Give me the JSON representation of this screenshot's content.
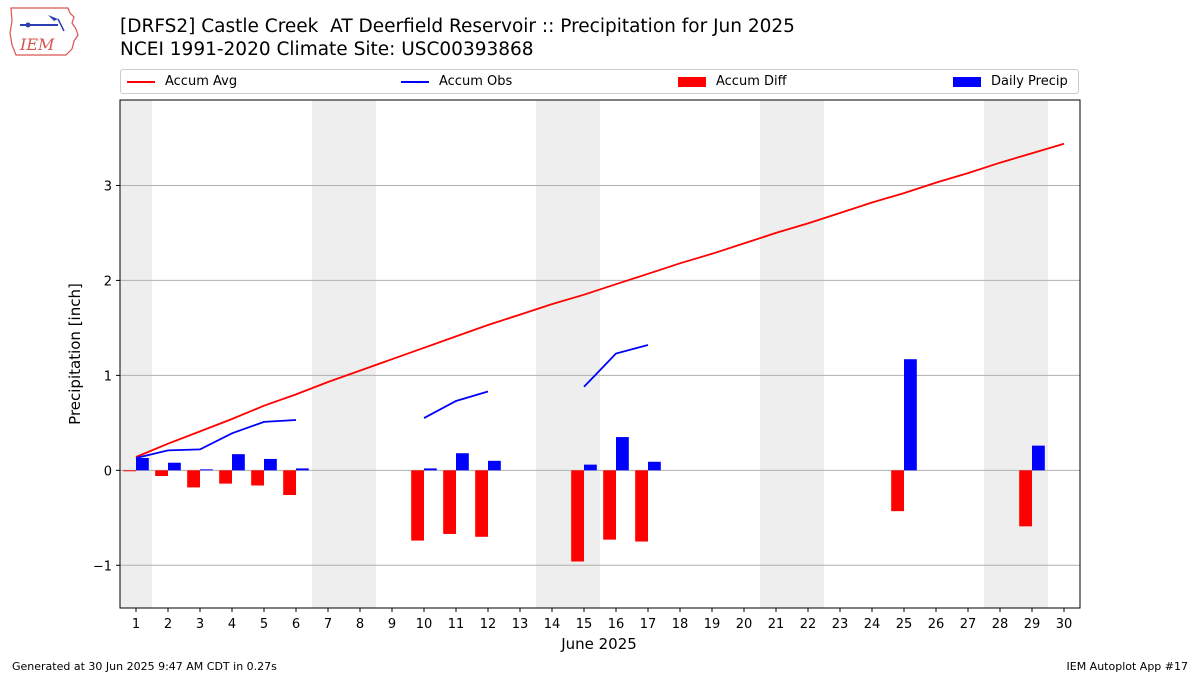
{
  "header": {
    "title_line1": "[DRFS2] Castle Creek  AT Deerfield Reservoir :: Precipitation for Jun 2025",
    "title_line2": "NCEI 1991-2020 Climate Site: USC00393868",
    "logo_text": "IEM",
    "logo_icon": "iowa-state-outline-icon"
  },
  "footer": {
    "left": "Generated at 30 Jun 2025 9:47 AM CDT in 0.27s",
    "right": "IEM Autoplot App #17"
  },
  "colors": {
    "accum_avg": "#ff0000",
    "accum_obs": "#0000ff",
    "accum_diff": "#ff0000",
    "daily_precip": "#0000ff",
    "weekend_shade": "#eeeeee",
    "grid": "#b0b0b0"
  },
  "chart_data": {
    "type": "bar",
    "title": "[DRFS2] Castle Creek  AT Deerfield Reservoir :: Precipitation for Jun 2025",
    "xlabel": "June 2025",
    "ylabel": "Precipitation [inch]",
    "xlim": [
      0.5,
      30.5
    ],
    "ylim": [
      -1.45,
      3.9
    ],
    "yticks": [
      -1,
      0,
      1,
      2,
      3
    ],
    "xticks": [
      1,
      2,
      3,
      4,
      5,
      6,
      7,
      8,
      9,
      10,
      11,
      12,
      13,
      14,
      15,
      16,
      17,
      18,
      19,
      20,
      21,
      22,
      23,
      24,
      25,
      26,
      27,
      28,
      29,
      30
    ],
    "grid": "horizontal",
    "legend_position": "top",
    "weekend_shading": [
      [
        0.5,
        1.5
      ],
      [
        6.5,
        8.5
      ],
      [
        13.5,
        15.5
      ],
      [
        20.5,
        22.5
      ],
      [
        27.5,
        29.5
      ]
    ],
    "days": [
      1,
      2,
      3,
      4,
      5,
      6,
      7,
      8,
      9,
      10,
      11,
      12,
      13,
      14,
      15,
      16,
      17,
      18,
      19,
      20,
      21,
      22,
      23,
      24,
      25,
      26,
      27,
      28,
      29,
      30
    ],
    "series": [
      {
        "name": "Accum Avg",
        "kind": "line",
        "values": [
          0.14,
          0.28,
          0.41,
          0.54,
          0.68,
          0.8,
          0.93,
          1.05,
          1.17,
          1.29,
          1.41,
          1.53,
          1.64,
          1.75,
          1.85,
          1.96,
          2.07,
          2.18,
          2.28,
          2.39,
          2.5,
          2.6,
          2.71,
          2.82,
          2.92,
          3.03,
          3.13,
          3.24,
          3.34,
          3.44
        ]
      },
      {
        "name": "Accum Obs",
        "kind": "line",
        "values": [
          0.13,
          0.21,
          0.22,
          0.39,
          0.51,
          0.53,
          null,
          null,
          null,
          0.55,
          0.73,
          0.83,
          null,
          null,
          0.88,
          1.23,
          1.32,
          null,
          null,
          null,
          null,
          null,
          null,
          null,
          null,
          null,
          null,
          null,
          null,
          null
        ]
      },
      {
        "name": "Accum Diff",
        "kind": "bar",
        "values": [
          -0.01,
          -0.06,
          -0.18,
          -0.14,
          -0.16,
          -0.26,
          null,
          null,
          null,
          -0.74,
          -0.67,
          -0.7,
          null,
          null,
          -0.96,
          -0.73,
          -0.75,
          null,
          null,
          null,
          null,
          null,
          null,
          null,
          -0.43,
          null,
          null,
          null,
          -0.59,
          null
        ]
      },
      {
        "name": "Daily Precip",
        "kind": "bar",
        "values": [
          0.13,
          0.08,
          0.01,
          0.17,
          0.12,
          0.02,
          null,
          null,
          null,
          0.02,
          0.18,
          0.1,
          null,
          null,
          0.06,
          0.35,
          0.09,
          null,
          null,
          null,
          null,
          null,
          null,
          null,
          1.17,
          null,
          null,
          null,
          0.26,
          null
        ]
      }
    ]
  }
}
